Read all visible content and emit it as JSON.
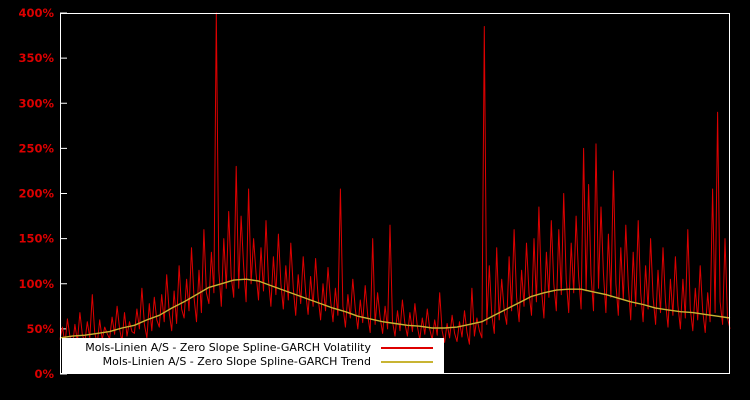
{
  "chart_data": {
    "type": "line",
    "title": "",
    "xlabel": "",
    "ylabel": "",
    "units": "percent",
    "ylim": [
      0,
      400
    ],
    "y_ticks": [
      "0%",
      "50%",
      "100%",
      "150%",
      "200%",
      "250%",
      "300%",
      "350%",
      "400%"
    ],
    "y_tick_values": [
      0,
      50,
      100,
      150,
      200,
      250,
      300,
      350,
      400
    ],
    "x_tick_labels": [],
    "grid": false,
    "background_color": "#000000",
    "border_color": "#ffffff",
    "axis_label_color": "#dd0000",
    "legend_position": "bottom-left-inside",
    "legend_background": "#ffffff",
    "series": [
      {
        "name": "Mols-Linien A/S - Zero Slope Spline-GARCH Volatility",
        "color": "#dd0000",
        "stroke_width": 1,
        "values": [
          38,
          52,
          33,
          61,
          42,
          30,
          55,
          36,
          68,
          44,
          35,
          58,
          40,
          88,
          46,
          33,
          60,
          38,
          52,
          45,
          39,
          63,
          44,
          75,
          50,
          36,
          68,
          42,
          58,
          47,
          45,
          72,
          50,
          95,
          55,
          40,
          78,
          48,
          85,
          60,
          52,
          88,
          58,
          110,
          68,
          48,
          92,
          56,
          120,
          72,
          62,
          105,
          70,
          140,
          85,
          58,
          115,
          68,
          160,
          90,
          78,
          135,
          90,
          400,
          115,
          75,
          150,
          95,
          180,
          108,
          85,
          230,
          95,
          175,
          120,
          80,
          205,
          100,
          150,
          112,
          82,
          140,
          92,
          170,
          105,
          75,
          130,
          88,
          155,
          100,
          72,
          120,
          82,
          145,
          95,
          65,
          110,
          78,
          130,
          90,
          66,
          108,
          75,
          128,
          85,
          60,
          100,
          70,
          118,
          82,
          58,
          95,
          65,
          205,
          75,
          52,
          88,
          62,
          105,
          72,
          50,
          82,
          57,
          98,
          65,
          46,
          150,
          55,
          90,
          63,
          45,
          75,
          50,
          165,
          58,
          42,
          70,
          48,
          82,
          56,
          42,
          68,
          47,
          78,
          53,
          38,
          62,
          44,
          72,
          50,
          38,
          60,
          43,
          90,
          48,
          35,
          56,
          40,
          65,
          45,
          36,
          58,
          41,
          70,
          46,
          33,
          95,
          42,
          62,
          48,
          40,
          385,
          55,
          120,
          65,
          45,
          140,
          60,
          105,
          70,
          55,
          130,
          70,
          160,
          85,
          58,
          115,
          75,
          145,
          90,
          65,
          150,
          80,
          185,
          95,
          62,
          135,
          85,
          170,
          100,
          70,
          160,
          88,
          200,
          105,
          68,
          145,
          90,
          175,
          108,
          72,
          250,
          92,
          210,
          110,
          70,
          255,
          95,
          185,
          112,
          68,
          155,
          85,
          225,
          100,
          65,
          140,
          82,
          165,
          98,
          60,
          135,
          75,
          170,
          90,
          58,
          120,
          72,
          150,
          85,
          55,
          115,
          68,
          140,
          80,
          52,
          105,
          65,
          130,
          76,
          50,
          105,
          62,
          160,
          72,
          48,
          95,
          60,
          120,
          70,
          46,
          90,
          58,
          205,
          68,
          290,
          80,
          55,
          150,
          62,
          50
        ]
      },
      {
        "name": "Mols-Linien A/S - Zero Slope Spline-GARCH Trend",
        "color": "#c8b432",
        "stroke_width": 1.4,
        "values": [
          40,
          42,
          43,
          45,
          47,
          51,
          54,
          60,
          65,
          73,
          80,
          88,
          96,
          100,
          104,
          105,
          103,
          98,
          93,
          88,
          83,
          78,
          73,
          69,
          64,
          61,
          58,
          56,
          54,
          53,
          51,
          51,
          52,
          55,
          58,
          65,
          72,
          79,
          86,
          90,
          93,
          94,
          94,
          91,
          88,
          84,
          80,
          77,
          73,
          71,
          69,
          68,
          66,
          64,
          62
        ]
      }
    ]
  }
}
